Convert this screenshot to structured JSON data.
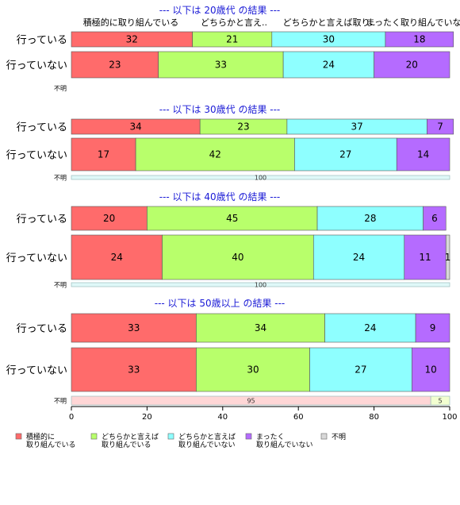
{
  "chart_data": {
    "type": "stacked-bar-horizontal",
    "category_headers": [
      "積極的に取り組んでいる",
      "どちらかと言え..",
      "どちらかと言えば取り..",
      "まったく取り組んでいな.."
    ],
    "legend": [
      {
        "label": "積極的に\n取り組んでいる",
        "color": "#ff6b6b"
      },
      {
        "label": "どちらかと言えば\n取り組んでいる",
        "color": "#b8ff6b"
      },
      {
        "label": "どちらかと言えば\n取り組んでいない",
        "color": "#8effff"
      },
      {
        "label": "まったく\n取り組んでいない",
        "color": "#b56bff"
      },
      {
        "label": "不明",
        "color": "#d8d8d8"
      }
    ],
    "x_ticks": [
      0,
      20,
      40,
      60,
      80,
      100
    ],
    "xlim": [
      0,
      100
    ],
    "panels": [
      {
        "title": "--- 以下は 20歳代 の結果 ---",
        "rows": [
          {
            "label": "行っている",
            "values": [
              32,
              21,
              30,
              18
            ]
          },
          {
            "label": "行っていない",
            "values": [
              23,
              33,
              24,
              20
            ]
          },
          {
            "label": "不明",
            "values": []
          }
        ]
      },
      {
        "title": "--- 以下は 30歳代 の結果 ---",
        "rows": [
          {
            "label": "行っている",
            "values": [
              34,
              23,
              37,
              7
            ]
          },
          {
            "label": "行っていない",
            "values": [
              17,
              42,
              27,
              14
            ]
          },
          {
            "label": "不明",
            "values": [
              0,
              0,
              100,
              0
            ],
            "value_labels": [
              "",
              "",
              "100",
              ""
            ]
          }
        ]
      },
      {
        "title": "--- 以下は 40歳代 の結果 ---",
        "rows": [
          {
            "label": "行っている",
            "values": [
              20,
              45,
              28,
              6
            ]
          },
          {
            "label": "行っていない",
            "values": [
              24,
              40,
              24,
              11,
              1
            ],
            "value_labels": [
              "24",
              "40",
              "24",
              "11",
              "1"
            ]
          },
          {
            "label": "不明",
            "values": [
              0,
              0,
              100,
              0
            ],
            "value_labels": [
              "",
              "",
              "100",
              ""
            ]
          }
        ]
      },
      {
        "title": "--- 以下は 50歳以上 の結果 ---",
        "rows": [
          {
            "label": "行っている",
            "values": [
              33,
              34,
              24,
              9
            ]
          },
          {
            "label": "行っていない",
            "values": [
              33,
              30,
              27,
              10
            ]
          },
          {
            "label": "不明",
            "values": [
              95,
              0,
              0,
              0,
              5
            ],
            "value_labels": [
              "95",
              "",
              "",
              "",
              "5"
            ],
            "colors": [
              "#ffd6d6",
              "#ffffff",
              "#ffffff",
              "#ffffff",
              "#f2ffd0"
            ]
          }
        ]
      }
    ]
  }
}
